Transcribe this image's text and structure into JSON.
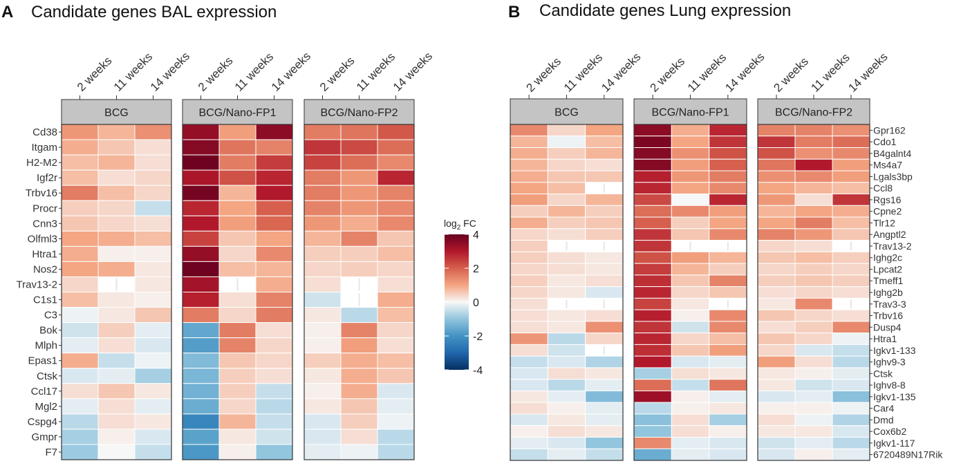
{
  "panels": [
    {
      "letter": "A",
      "title": "Candidate genes BAL expression",
      "gene_label_side": "left",
      "facets": [
        "BCG",
        "BCG/Nano-FP1",
        "BCG/Nano-FP2"
      ],
      "timepoints": [
        "2 weeks",
        "11 weeks",
        "14 weeks"
      ],
      "genes": [
        "Cd38",
        "Itgam",
        "H2-M2",
        "Igf2r",
        "Trbv16",
        "Procr",
        "Cnn3",
        "Olfml3",
        "Htra1",
        "Nos2",
        "Trav13-2",
        "C1s1",
        "C3",
        "Bok",
        "Mlph",
        "Epas1",
        "Ctsk",
        "Ccl17",
        "Mgl2",
        "Cspg4",
        "Gmpr",
        "F7"
      ],
      "values": [
        [
          [
            1.2,
            0.8,
            1.3
          ],
          [
            3.4,
            1.1,
            3.5
          ],
          [
            1.6,
            1.7,
            2.1
          ]
        ],
        [
          [
            0.9,
            0.6,
            0.3
          ],
          [
            3.6,
            1.7,
            1.5
          ],
          [
            2.6,
            2.3,
            1.8
          ]
        ],
        [
          [
            0.7,
            0.8,
            0.3
          ],
          [
            3.9,
            1.6,
            2.5
          ],
          [
            2.4,
            1.8,
            1.4
          ]
        ],
        [
          [
            0.7,
            0.3,
            0.4
          ],
          [
            3.1,
            2.2,
            2.8
          ],
          [
            1.6,
            1.2,
            2.8
          ]
        ],
        [
          [
            1.6,
            0.7,
            0.4
          ],
          [
            3.8,
            0.8,
            3.0
          ],
          [
            1.6,
            1.2,
            1.5
          ]
        ],
        [
          [
            0.5,
            0.4,
            -0.5
          ],
          [
            2.8,
            1.0,
            2.0
          ],
          [
            1.5,
            1.2,
            1.4
          ]
        ],
        [
          [
            0.6,
            0.4,
            0.3
          ],
          [
            3.0,
            1.1,
            1.9
          ],
          [
            1.2,
            0.9,
            1.4
          ]
        ],
        [
          [
            1.0,
            0.9,
            0.7
          ],
          [
            2.4,
            0.6,
            1.0
          ],
          [
            0.8,
            1.5,
            0.6
          ]
        ],
        [
          [
            0.9,
            0.1,
            0.1
          ],
          [
            3.4,
            0.4,
            1.4
          ],
          [
            0.5,
            0.5,
            0.7
          ]
        ],
        [
          [
            1.0,
            0.9,
            0.2
          ],
          [
            3.9,
            0.7,
            0.8
          ],
          [
            0.4,
            0.5,
            0.4
          ]
        ],
        [
          [
            0.4,
            null,
            0.2
          ],
          [
            3.2,
            null,
            0.9
          ],
          [
            0.3,
            null,
            0.3
          ]
        ],
        [
          [
            0.7,
            0.2,
            0.1
          ],
          [
            2.9,
            0.3,
            1.5
          ],
          [
            -0.4,
            null,
            0.9
          ]
        ],
        [
          [
            -0.1,
            0.2,
            0.6
          ],
          [
            1.6,
            0.4,
            1.6
          ],
          [
            0.2,
            -0.6,
            0.7
          ]
        ],
        [
          [
            -0.4,
            0.5,
            -0.2
          ],
          [
            -1.6,
            1.6,
            0.3
          ],
          [
            0.1,
            1.5,
            0.4
          ]
        ],
        [
          [
            -0.2,
            0.3,
            -0.3
          ],
          [
            -1.8,
            1.5,
            0.4
          ],
          [
            0.1,
            1.1,
            0.3
          ]
        ],
        [
          [
            0.9,
            -0.5,
            -0.1
          ],
          [
            -1.2,
            0.6,
            0.4
          ],
          [
            0.5,
            0.9,
            0.7
          ]
        ],
        [
          [
            -0.3,
            -0.2,
            -0.8
          ],
          [
            -1.3,
            0.5,
            0.3
          ],
          [
            0.2,
            0.9,
            0.6
          ]
        ],
        [
          [
            0.3,
            0.6,
            0.2
          ],
          [
            -1.4,
            0.5,
            -0.5
          ],
          [
            0.1,
            0.9,
            -0.3
          ]
        ],
        [
          [
            -0.2,
            0.3,
            -0.2
          ],
          [
            -1.5,
            0.4,
            -0.6
          ],
          [
            0.2,
            0.6,
            -0.2
          ]
        ],
        [
          [
            -0.6,
            0.3,
            0.2
          ],
          [
            -2.3,
            0.8,
            -0.5
          ],
          [
            -0.3,
            0.5,
            -0.1
          ]
        ],
        [
          [
            -0.8,
            0.1,
            -0.3
          ],
          [
            -1.7,
            0.2,
            -0.4
          ],
          [
            -0.3,
            0.3,
            -0.6
          ]
        ],
        [
          [
            -0.9,
            0.0,
            -0.5
          ],
          [
            -1.9,
            0.1,
            -1.0
          ],
          [
            -0.2,
            -0.1,
            -0.6
          ]
        ]
      ]
    },
    {
      "letter": "B",
      "title": "Candidate genes Lung expression",
      "gene_label_side": "right",
      "facets": [
        "BCG",
        "BCG/Nano-FP1",
        "BCG/Nano-FP2"
      ],
      "timepoints": [
        "2 weeks",
        "11 weeks",
        "14 weeks"
      ],
      "genes": [
        "Gpr162",
        "Cdo1",
        "B4galnt4",
        "Ms4a7",
        "Lgals3bp",
        "Ccl8",
        "Rgs16",
        "Cpne2",
        "Tlr12",
        "Angptl2",
        "Trav13-2",
        "Ighg2c",
        "Lpcat2",
        "Tmeff1",
        "Ighg2b",
        "Trav3-3",
        "Trbv16",
        "Dusp4",
        "Htra1",
        "Igkv1-133",
        "Ighv9-3",
        "Ctsk",
        "Ighv8-8",
        "Igkv1-135",
        "Car4",
        "Dmd",
        "Cox6b2",
        "Igkv1-117",
        "6720489N17Rik"
      ],
      "values": [
        [
          [
            1.4,
            0.4,
            1.0
          ],
          [
            3.5,
            0.9,
            2.8
          ],
          [
            1.5,
            1.5,
            1.3
          ]
        ],
        [
          [
            0.8,
            -0.1,
            0.7
          ],
          [
            3.7,
            1.0,
            2.6
          ],
          [
            2.6,
            1.6,
            1.8
          ]
        ],
        [
          [
            0.9,
            0.5,
            0.8
          ],
          [
            3.6,
            1.3,
            2.2
          ],
          [
            2.2,
            1.3,
            1.4
          ]
        ],
        [
          [
            0.8,
            0.4,
            0.3
          ],
          [
            3.6,
            1.1,
            2.0
          ],
          [
            1.7,
            3.0,
            1.1
          ]
        ],
        [
          [
            0.9,
            0.6,
            0.6
          ],
          [
            2.9,
            1.2,
            1.6
          ],
          [
            1.3,
            1.4,
            1.1
          ]
        ],
        [
          [
            1.0,
            0.7,
            null
          ],
          [
            2.8,
            1.0,
            1.4
          ],
          [
            1.0,
            0.8,
            0.7
          ]
        ],
        [
          [
            1.1,
            0.4,
            0.8
          ],
          [
            2.3,
            0.0,
            2.8
          ],
          [
            1.2,
            0.3,
            2.6
          ]
        ],
        [
          [
            0.5,
            0.8,
            0.5
          ],
          [
            1.8,
            1.4,
            1.1
          ],
          [
            0.8,
            1.0,
            0.9
          ]
        ],
        [
          [
            0.9,
            0.5,
            0.6
          ],
          [
            2.0,
            0.5,
            1.0
          ],
          [
            1.0,
            1.6,
            0.7
          ]
        ],
        [
          [
            0.4,
            0.3,
            0.5
          ],
          [
            2.6,
            0.6,
            1.4
          ],
          [
            1.5,
            1.2,
            0.6
          ]
        ],
        [
          [
            0.5,
            null,
            null
          ],
          [
            2.6,
            null,
            null
          ],
          [
            0.4,
            0.3,
            null
          ]
        ],
        [
          [
            0.5,
            0.3,
            0.2
          ],
          [
            2.2,
            1.1,
            0.8
          ],
          [
            0.6,
            0.7,
            0.5
          ]
        ],
        [
          [
            0.4,
            0.3,
            0.2
          ],
          [
            2.5,
            0.8,
            0.5
          ],
          [
            0.4,
            0.5,
            0.4
          ]
        ],
        [
          [
            0.5,
            0.2,
            0.3
          ],
          [
            2.7,
            0.6,
            1.5
          ],
          [
            0.5,
            0.6,
            0.5
          ]
        ],
        [
          [
            0.4,
            0.2,
            -0.3
          ],
          [
            2.8,
            0.4,
            0.6
          ],
          [
            0.3,
            0.4,
            0.3
          ]
        ],
        [
          [
            0.3,
            null,
            null
          ],
          [
            2.4,
            0.2,
            null
          ],
          [
            0.2,
            1.4,
            null
          ]
        ],
        [
          [
            0.3,
            0.2,
            0.3
          ],
          [
            2.9,
            0.1,
            1.4
          ],
          [
            0.6,
            0.4,
            0.3
          ]
        ],
        [
          [
            0.3,
            0.2,
            1.3
          ],
          [
            2.6,
            -0.4,
            1.4
          ],
          [
            0.3,
            0.5,
            1.4
          ]
        ],
        [
          [
            1.2,
            -0.6,
            0.4
          ],
          [
            2.8,
            0.4,
            0.7
          ],
          [
            0.6,
            0.4,
            -0.1
          ]
        ],
        [
          [
            0.3,
            -0.4,
            null
          ],
          [
            2.7,
            0.6,
            1.1
          ],
          [
            0.4,
            -0.3,
            -0.5
          ]
        ],
        [
          [
            -0.5,
            -0.3,
            -0.7
          ],
          [
            3.0,
            -0.3,
            -0.2
          ],
          [
            1.1,
            0.3,
            -0.6
          ]
        ],
        [
          [
            -0.3,
            0.3,
            0.2
          ],
          [
            -0.8,
            0.3,
            0.2
          ],
          [
            0.2,
            0.1,
            -0.2
          ]
        ],
        [
          [
            -0.3,
            -0.6,
            -0.2
          ],
          [
            1.8,
            -0.5,
            1.7
          ],
          [
            0.2,
            -0.4,
            -0.3
          ]
        ],
        [
          [
            0.2,
            -0.2,
            -1.2
          ],
          [
            3.3,
            0.1,
            -0.2
          ],
          [
            -0.3,
            -0.2,
            -1.1
          ]
        ],
        [
          [
            0.3,
            0.1,
            -0.2
          ],
          [
            -0.6,
            0.1,
            0.2
          ],
          [
            0.1,
            0.1,
            -0.1
          ]
        ],
        [
          [
            -0.3,
            0.2,
            -0.2
          ],
          [
            -1.1,
            0.3,
            -0.8
          ],
          [
            0.3,
            -0.1,
            -0.7
          ]
        ],
        [
          [
            0.1,
            0.3,
            0.2
          ],
          [
            -1.0,
            0.3,
            0.1
          ],
          [
            0.2,
            0.2,
            -0.3
          ]
        ],
        [
          [
            -0.2,
            -0.3,
            -1.0
          ],
          [
            1.4,
            -0.2,
            -0.3
          ],
          [
            -0.4,
            -0.2,
            -0.6
          ]
        ],
        [
          [
            -0.5,
            -0.2,
            -0.5
          ],
          [
            -1.5,
            -0.2,
            -0.3
          ],
          [
            -0.3,
            0.1,
            -0.2
          ]
        ]
      ]
    }
  ],
  "legend": {
    "title_prefix": "log",
    "title_subscript": "2",
    "title_suffix": " FC",
    "ticks": [
      "4",
      "2",
      "0",
      "-2",
      "-4"
    ],
    "min": -4,
    "max": 4
  },
  "colors": {
    "strong_positive": "#67001f",
    "positive": "#d6604d",
    "light_positive": "#f4a582",
    "neutral": "#f7f7f7",
    "light_negative": "#92c5de",
    "negative": "#4393c3",
    "strong_negative": "#053061",
    "strip_fill": "#c4c4c4",
    "text": "#333333"
  },
  "chart_data": [
    {
      "type": "heatmap",
      "title": "Candidate genes BAL expression",
      "legend_title": "log2 FC",
      "value_range": [
        -4,
        4
      ],
      "facets": [
        "BCG",
        "BCG/Nano-FP1",
        "BCG/Nano-FP2"
      ],
      "x": [
        "2 weeks",
        "11 weeks",
        "14 weeks"
      ],
      "y": [
        "Cd38",
        "Itgam",
        "H2-M2",
        "Igf2r",
        "Trbv16",
        "Procr",
        "Cnn3",
        "Olfml3",
        "Htra1",
        "Nos2",
        "Trav13-2",
        "C1s1",
        "C3",
        "Bok",
        "Mlph",
        "Epas1",
        "Ctsk",
        "Ccl17",
        "Mgl2",
        "Cspg4",
        "Gmpr",
        "F7"
      ],
      "note": "values = panels[0].values [gene][facet][timepoint]; null = missing"
    },
    {
      "type": "heatmap",
      "title": "Candidate genes Lung expression",
      "legend_title": "log2 FC",
      "value_range": [
        -4,
        4
      ],
      "facets": [
        "BCG",
        "BCG/Nano-FP1",
        "BCG/Nano-FP2"
      ],
      "x": [
        "2 weeks",
        "11 weeks",
        "14 weeks"
      ],
      "y": [
        "Gpr162",
        "Cdo1",
        "B4galnt4",
        "Ms4a7",
        "Lgals3bp",
        "Ccl8",
        "Rgs16",
        "Cpne2",
        "Tlr12",
        "Angptl2",
        "Trav13-2",
        "Ighg2c",
        "Lpcat2",
        "Tmeff1",
        "Ighg2b",
        "Trav3-3",
        "Trbv16",
        "Dusp4",
        "Htra1",
        "Igkv1-133",
        "Ighv9-3",
        "Ctsk",
        "Ighv8-8",
        "Igkv1-135",
        "Car4",
        "Dmd",
        "Cox6b2",
        "Igkv1-117",
        "6720489N17Rik"
      ],
      "note": "values = panels[1].values [gene][facet][timepoint]; null = missing"
    }
  ]
}
